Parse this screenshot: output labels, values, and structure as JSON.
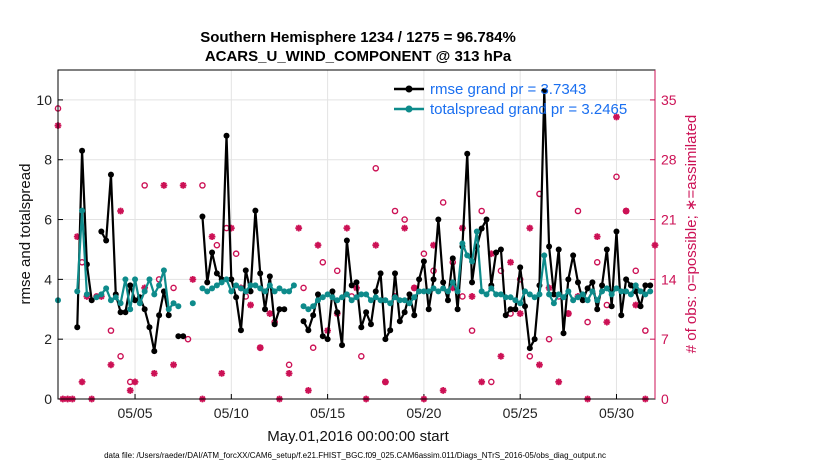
{
  "chart_data": {
    "type": "line",
    "title": "Southern Hemisphere 1234 / 1275 = 96.784%",
    "subtitle": "ACARS_U_WIND_COMPONENT @ 313 hPa",
    "xlabel": "May.01,2016 00:00:00 start",
    "ylabel": "rmse and totalspread",
    "ylabel_right": "# of obs: o=possible; ∗=assimilated",
    "footer": "data file: /Users/raeder/DAI/ATM_forcXX/CAM6_setup/f.e21.FHIST_BGC.f09_025.CAM6assim.011/Diags_NTrS_2016-05/obs_diag_output.nc",
    "xlim": [
      1,
      32
    ],
    "ylim": [
      0,
      11
    ],
    "ylim_right": [
      0,
      38.5
    ],
    "xticks": [
      {
        "x": 5,
        "label": "05/05"
      },
      {
        "x": 10,
        "label": "05/10"
      },
      {
        "x": 15,
        "label": "05/15"
      },
      {
        "x": 20,
        "label": "05/20"
      },
      {
        "x": 25,
        "label": "05/25"
      },
      {
        "x": 30,
        "label": "05/30"
      }
    ],
    "yticks": [
      0,
      2,
      4,
      6,
      8,
      10
    ],
    "yticks_right": [
      0,
      7,
      14,
      21,
      28,
      35
    ],
    "grid": true,
    "legend_position": "top-right",
    "series": [
      {
        "name": "rmse grand pr = 3.7343",
        "color": "#000000",
        "marker": "circle",
        "x": [
          2.0,
          2.25,
          2.5,
          2.75,
          3.25,
          3.5,
          3.75,
          4.0,
          4.25,
          4.5,
          4.75,
          5.0,
          5.25,
          5.5,
          5.75,
          6.0,
          6.25,
          6.5,
          6.75,
          7.25,
          7.5,
          8.5,
          8.75,
          9.0,
          9.25,
          9.5,
          9.75,
          10.0,
          10.25,
          10.5,
          10.75,
          11.0,
          11.25,
          11.5,
          11.75,
          12.0,
          12.25,
          12.5,
          12.75,
          13.75,
          14.0,
          14.25,
          14.5,
          14.75,
          15.0,
          15.25,
          15.5,
          15.75,
          16.0,
          16.25,
          16.5,
          16.75,
          17.0,
          17.25,
          17.5,
          17.75,
          18.0,
          18.25,
          18.5,
          18.75,
          19.0,
          19.25,
          19.5,
          19.75,
          20.0,
          20.25,
          20.5,
          20.75,
          21.0,
          21.25,
          21.5,
          21.75,
          22.0,
          22.25,
          22.5,
          22.75,
          23.0,
          23.25,
          23.5,
          23.75,
          24.0,
          24.25,
          24.5,
          24.75,
          25.0,
          25.25,
          25.5,
          25.75,
          26.0,
          26.25,
          26.5,
          26.75,
          27.0,
          27.25,
          27.5,
          27.75,
          28.0,
          28.25,
          28.5,
          28.75,
          29.0,
          29.25,
          29.5,
          29.75,
          30.0,
          30.25,
          30.5,
          30.75,
          31.0,
          31.25,
          31.5,
          31.75
        ],
        "values": [
          2.4,
          8.3,
          4.5,
          3.3,
          5.6,
          5.3,
          7.5,
          3.5,
          2.9,
          2.9,
          3.8,
          3.3,
          3.4,
          3.0,
          2.4,
          1.6,
          2.8,
          3.6,
          2.8,
          2.1,
          2.1,
          6.1,
          3.9,
          4.9,
          4.2,
          4.0,
          8.8,
          4.0,
          3.4,
          2.3,
          4.3,
          3.6,
          6.3,
          4.2,
          3.0,
          4.1,
          2.5,
          3.0,
          3.0,
          2.6,
          2.3,
          2.8,
          3.5,
          2.1,
          2.0,
          3.6,
          2.9,
          1.8,
          5.3,
          3.8,
          3.9,
          2.4,
          2.9,
          2.5,
          3.6,
          4.2,
          2.0,
          2.3,
          4.2,
          2.6,
          2.9,
          3.5,
          2.8,
          4.0,
          4.6,
          3.0,
          4.0,
          6.0,
          3.9,
          3.3,
          4.7,
          3.0,
          5.1,
          8.2,
          3.9,
          5.1,
          5.7,
          6.0,
          3.8,
          4.9,
          5.0,
          2.8,
          3.0,
          3.0,
          4.4,
          3.1,
          1.7,
          2.0,
          3.8,
          10.3,
          5.1,
          3.5,
          5.0,
          2.2,
          4.0,
          4.8,
          3.9,
          3.3,
          3.7,
          3.9,
          3.0,
          3.8,
          5.0,
          3.1,
          5.6,
          2.8,
          4.0,
          3.8,
          3.6,
          3.1,
          3.8,
          3.8
        ]
      },
      {
        "name": "totalspread grand pr = 3.2465",
        "color": "#0e8b8b",
        "marker": "circle",
        "x": [
          1.0,
          2.0,
          2.25,
          2.5,
          3.0,
          3.25,
          3.5,
          3.75,
          4.0,
          4.25,
          4.5,
          4.75,
          5.0,
          5.25,
          5.5,
          5.75,
          6.0,
          6.25,
          6.5,
          6.75,
          7.0,
          7.25,
          8.0,
          8.5,
          8.75,
          9.0,
          9.25,
          9.5,
          9.75,
          10.0,
          10.25,
          10.5,
          10.75,
          11.0,
          11.25,
          11.5,
          11.75,
          12.0,
          12.25,
          12.5,
          12.75,
          13.0,
          13.25,
          13.75,
          14.0,
          14.25,
          14.5,
          14.75,
          15.0,
          15.25,
          15.5,
          15.75,
          16.0,
          16.25,
          16.5,
          16.75,
          17.0,
          17.25,
          17.5,
          17.75,
          18.0,
          18.25,
          18.5,
          18.75,
          19.0,
          19.25,
          19.5,
          19.75,
          20.0,
          20.25,
          20.5,
          20.75,
          21.0,
          21.25,
          21.5,
          21.75,
          22.0,
          22.25,
          22.5,
          22.75,
          23.0,
          23.25,
          23.5,
          23.75,
          24.0,
          24.25,
          24.5,
          24.75,
          25.0,
          25.25,
          25.5,
          25.75,
          26.0,
          26.25,
          26.5,
          26.75,
          27.0,
          27.25,
          27.5,
          27.75,
          28.0,
          28.25,
          28.5,
          28.75,
          29.0,
          29.25,
          29.5,
          29.75,
          30.0,
          30.25,
          30.5,
          30.75,
          31.0,
          31.25,
          31.5,
          31.75
        ],
        "values": [
          3.3,
          3.6,
          6.3,
          3.5,
          3.4,
          3.5,
          3.7,
          3.3,
          3.4,
          3.2,
          4.0,
          3.0,
          4.0,
          3.2,
          3.6,
          4.0,
          3.5,
          3.8,
          4.3,
          3.0,
          3.2,
          3.1,
          3.2,
          3.7,
          3.6,
          3.7,
          3.8,
          3.9,
          4.0,
          3.6,
          3.8,
          3.7,
          3.6,
          3.8,
          3.8,
          3.7,
          3.6,
          3.8,
          3.6,
          3.7,
          3.6,
          3.6,
          3.8,
          3.1,
          3.0,
          3.1,
          3.3,
          3.4,
          3.5,
          3.4,
          3.3,
          3.4,
          3.5,
          3.3,
          3.4,
          3.5,
          3.5,
          3.3,
          3.4,
          3.3,
          3.3,
          3.2,
          3.4,
          3.3,
          3.3,
          3.2,
          3.4,
          3.6,
          3.6,
          3.6,
          3.7,
          3.6,
          3.7,
          3.6,
          3.9,
          3.6,
          5.2,
          4.8,
          4.6,
          5.6,
          3.6,
          3.5,
          3.7,
          3.5,
          3.5,
          3.4,
          3.4,
          3.3,
          3.2,
          3.6,
          3.5,
          3.4,
          3.5,
          4.8,
          3.5,
          3.2,
          3.5,
          3.4,
          3.6,
          3.3,
          3.4,
          3.5,
          3.3,
          3.6,
          3.3,
          3.6,
          3.7,
          3.5,
          3.7,
          3.6,
          3.6,
          3.5,
          3.8,
          3.6,
          3.5,
          3.6
        ]
      }
    ],
    "obs_possible": {
      "color": "#cc1155",
      "marker": "o",
      "x": [
        1.0,
        2.25,
        3.0,
        3.75,
        4.25,
        4.75,
        5.5,
        6.25,
        7.0,
        7.75,
        8.5,
        9.25,
        9.75,
        10.25,
        10.75,
        11.5,
        12.25,
        13.0,
        13.75,
        14.25,
        14.75,
        15.5,
        16.25,
        16.75,
        17.5,
        18.0,
        18.5,
        19.0,
        19.5,
        20.0,
        20.5,
        21.0,
        21.5,
        22.0,
        22.5,
        23.0,
        23.5,
        24.0,
        24.5,
        25.0,
        25.5,
        26.0,
        26.5,
        27.0,
        27.5,
        28.0,
        28.5,
        29.0,
        29.5,
        30.0,
        30.5,
        31.0,
        31.5
      ],
      "values": [
        34,
        16,
        12,
        8,
        5,
        2,
        25,
        14,
        13,
        7,
        25,
        18,
        20,
        17,
        12,
        6,
        9,
        4,
        13,
        6,
        16,
        15,
        12,
        5,
        27,
        2,
        22,
        21,
        13,
        17,
        15,
        23,
        16,
        12,
        8,
        22,
        2,
        15,
        10,
        14,
        5,
        24,
        7,
        12,
        10,
        22,
        9,
        16,
        11,
        26,
        22,
        15,
        8
      ]
    },
    "obs_assimilated": {
      "color": "#cc1155",
      "marker": "*",
      "x": [
        1.0,
        1.25,
        1.5,
        1.75,
        2.0,
        2.25,
        2.5,
        2.75,
        3.25,
        3.75,
        4.25,
        4.75,
        5.0,
        5.5,
        6.0,
        6.5,
        7.0,
        7.5,
        8.0,
        8.5,
        9.0,
        9.5,
        10.0,
        10.5,
        11.0,
        11.5,
        12.0,
        12.5,
        13.0,
        13.5,
        14.0,
        14.5,
        15.0,
        15.5,
        16.0,
        16.5,
        17.0,
        17.5,
        18.0,
        18.5,
        19.0,
        19.5,
        20.0,
        20.5,
        21.0,
        21.5,
        22.0,
        22.5,
        23.0,
        23.5,
        24.0,
        24.5,
        25.0,
        25.5,
        26.0,
        26.5,
        27.0,
        27.5,
        28.0,
        28.5,
        29.0,
        29.5,
        30.0,
        30.5,
        31.0,
        31.5,
        32.0
      ],
      "values": [
        32,
        0,
        0,
        0,
        19,
        2,
        12,
        0,
        12,
        4,
        22,
        1,
        2,
        13,
        3,
        25,
        4,
        25,
        14,
        0,
        19,
        3,
        20,
        13,
        11,
        6,
        10,
        0,
        3,
        20,
        1,
        18,
        8,
        10,
        20,
        13,
        0,
        18,
        2,
        12,
        20,
        13,
        0,
        18,
        1,
        13,
        20,
        12,
        2,
        17,
        5,
        16,
        10,
        20,
        4,
        13,
        2,
        10,
        12,
        0,
        19,
        9,
        33,
        22,
        11,
        0,
        18
      ]
    }
  }
}
